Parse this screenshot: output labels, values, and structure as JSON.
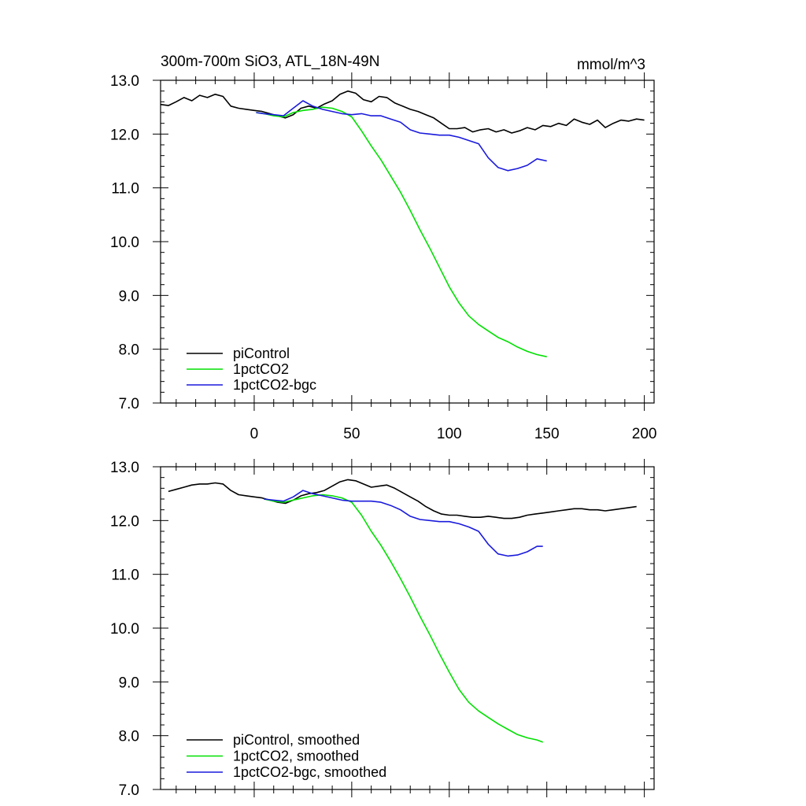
{
  "chart_data": [
    {
      "type": "line",
      "title": "300m-700m SiO3, ATL_18N-49N",
      "units": "mmol/m^3",
      "xlabel": "",
      "ylabel": "",
      "xlim": [
        -48,
        205
      ],
      "ylim": [
        7.0,
        13.0
      ],
      "yticks": [
        7.0,
        8.0,
        9.0,
        10.0,
        11.0,
        12.0,
        13.0
      ],
      "ytick_labels": [
        "7.0",
        "8.0",
        "9.0",
        "10.0",
        "11.0",
        "12.0",
        "13.0"
      ],
      "xticks": [
        0,
        50,
        100,
        150,
        200
      ],
      "xtick_labels": [
        "0",
        "50",
        "100",
        "150",
        "200"
      ],
      "legend_position": "bottom-left",
      "series": [
        {
          "name": "piControl",
          "color": "#000000",
          "x": [
            -48,
            -44,
            -40,
            -36,
            -32,
            -28,
            -24,
            -20,
            -16,
            -12,
            -8,
            -4,
            0,
            4,
            8,
            12,
            16,
            20,
            24,
            28,
            32,
            36,
            40,
            44,
            48,
            52,
            56,
            60,
            64,
            68,
            72,
            76,
            80,
            84,
            88,
            92,
            96,
            100,
            104,
            108,
            112,
            116,
            120,
            124,
            128,
            132,
            136,
            140,
            144,
            148,
            152,
            156,
            160,
            164,
            168,
            172,
            176,
            180,
            184,
            188,
            192,
            196,
            200
          ],
          "values": [
            12.55,
            12.53,
            12.6,
            12.68,
            12.62,
            12.72,
            12.68,
            12.74,
            12.7,
            12.52,
            12.48,
            12.46,
            12.44,
            12.42,
            12.38,
            12.34,
            12.3,
            12.36,
            12.48,
            12.52,
            12.48,
            12.56,
            12.62,
            12.74,
            12.8,
            12.76,
            12.64,
            12.6,
            12.7,
            12.68,
            12.58,
            12.52,
            12.46,
            12.42,
            12.36,
            12.3,
            12.2,
            12.1,
            12.1,
            12.12,
            12.04,
            12.08,
            12.1,
            12.04,
            12.08,
            12.02,
            12.06,
            12.12,
            12.08,
            12.16,
            12.14,
            12.2,
            12.16,
            12.28,
            12.22,
            12.18,
            12.26,
            12.12,
            12.2,
            12.26,
            12.24,
            12.28,
            12.26
          ]
        },
        {
          "name": "1pctCO2",
          "color": "#00e000",
          "x": [
            1,
            5,
            10,
            15,
            20,
            25,
            30,
            35,
            40,
            45,
            50,
            55,
            60,
            65,
            70,
            75,
            80,
            85,
            90,
            95,
            100,
            105,
            110,
            115,
            120,
            125,
            130,
            135,
            140,
            145,
            150
          ],
          "values": [
            12.4,
            12.38,
            12.34,
            12.32,
            12.4,
            12.44,
            12.46,
            12.5,
            12.48,
            12.42,
            12.32,
            12.06,
            11.78,
            11.52,
            11.22,
            10.92,
            10.58,
            10.22,
            9.88,
            9.52,
            9.16,
            8.86,
            8.62,
            8.46,
            8.34,
            8.22,
            8.14,
            8.04,
            7.96,
            7.9,
            7.86
          ]
        },
        {
          "name": "1pctCO2-bgc",
          "color": "#1a1adc",
          "x": [
            1,
            5,
            10,
            15,
            20,
            25,
            30,
            35,
            40,
            45,
            50,
            55,
            60,
            65,
            70,
            75,
            80,
            85,
            90,
            95,
            100,
            105,
            110,
            115,
            120,
            125,
            130,
            135,
            140,
            145,
            150
          ],
          "values": [
            12.4,
            12.38,
            12.36,
            12.34,
            12.48,
            12.62,
            12.52,
            12.46,
            12.42,
            12.38,
            12.36,
            12.38,
            12.34,
            12.34,
            12.28,
            12.22,
            12.08,
            12.02,
            12.0,
            11.98,
            11.98,
            11.94,
            11.88,
            11.82,
            11.56,
            11.38,
            11.32,
            11.36,
            11.42,
            11.54,
            11.5
          ]
        }
      ]
    },
    {
      "type": "line",
      "title": "",
      "xlabel": "",
      "ylabel": "",
      "xlim": [
        -48,
        205
      ],
      "ylim": [
        7.0,
        13.0
      ],
      "yticks": [
        7.0,
        8.0,
        9.0,
        10.0,
        11.0,
        12.0,
        13.0
      ],
      "ytick_labels": [
        "7.0",
        "8.0",
        "9.0",
        "10.0",
        "11.0",
        "12.0",
        "13.0"
      ],
      "xticks": [
        0,
        50,
        100,
        150,
        200
      ],
      "legend_position": "bottom-left",
      "series": [
        {
          "name": "piControl, smoothed",
          "color": "#000000",
          "x": [
            -44,
            -40,
            -36,
            -32,
            -28,
            -24,
            -20,
            -16,
            -12,
            -8,
            -4,
            0,
            4,
            8,
            12,
            16,
            20,
            24,
            28,
            32,
            36,
            40,
            44,
            48,
            52,
            56,
            60,
            64,
            68,
            72,
            76,
            80,
            84,
            88,
            92,
            96,
            100,
            104,
            108,
            112,
            116,
            120,
            124,
            128,
            132,
            136,
            140,
            144,
            148,
            152,
            156,
            160,
            164,
            168,
            172,
            176,
            180,
            184,
            188,
            192,
            196
          ],
          "values": [
            12.54,
            12.58,
            12.62,
            12.66,
            12.68,
            12.68,
            12.7,
            12.68,
            12.56,
            12.48,
            12.46,
            12.44,
            12.42,
            12.38,
            12.34,
            12.32,
            12.38,
            12.46,
            12.5,
            12.52,
            12.56,
            12.64,
            12.72,
            12.76,
            12.74,
            12.68,
            12.62,
            12.64,
            12.66,
            12.6,
            12.52,
            12.44,
            12.36,
            12.26,
            12.18,
            12.12,
            12.1,
            12.1,
            12.08,
            12.06,
            12.06,
            12.08,
            12.06,
            12.04,
            12.04,
            12.06,
            12.1,
            12.12,
            12.14,
            12.16,
            12.18,
            12.2,
            12.22,
            12.22,
            12.2,
            12.2,
            12.18,
            12.2,
            12.22,
            12.24,
            12.26
          ]
        },
        {
          "name": "1pctCO2, smoothed",
          "color": "#00e000",
          "x": [
            5,
            10,
            15,
            20,
            25,
            30,
            35,
            40,
            45,
            50,
            55,
            60,
            65,
            70,
            75,
            80,
            85,
            90,
            95,
            100,
            105,
            110,
            115,
            120,
            125,
            130,
            135,
            140,
            145,
            148
          ],
          "values": [
            12.4,
            12.36,
            12.34,
            12.38,
            12.42,
            12.46,
            12.48,
            12.46,
            12.42,
            12.34,
            12.1,
            11.8,
            11.54,
            11.24,
            10.92,
            10.58,
            10.22,
            9.88,
            9.52,
            9.18,
            8.86,
            8.62,
            8.46,
            8.34,
            8.22,
            8.12,
            8.02,
            7.96,
            7.92,
            7.88
          ]
        },
        {
          "name": "1pctCO2-bgc, smoothed",
          "color": "#1a1adc",
          "x": [
            5,
            10,
            15,
            20,
            25,
            30,
            35,
            40,
            45,
            50,
            55,
            60,
            65,
            70,
            75,
            80,
            85,
            90,
            95,
            100,
            105,
            110,
            115,
            120,
            125,
            130,
            135,
            140,
            145,
            148
          ],
          "values": [
            12.4,
            12.38,
            12.36,
            12.44,
            12.56,
            12.5,
            12.46,
            12.42,
            12.38,
            12.36,
            12.36,
            12.36,
            12.34,
            12.28,
            12.2,
            12.08,
            12.02,
            12.0,
            11.98,
            11.98,
            11.94,
            11.88,
            11.8,
            11.56,
            11.38,
            11.34,
            11.36,
            11.42,
            11.52,
            11.52
          ]
        }
      ]
    }
  ]
}
